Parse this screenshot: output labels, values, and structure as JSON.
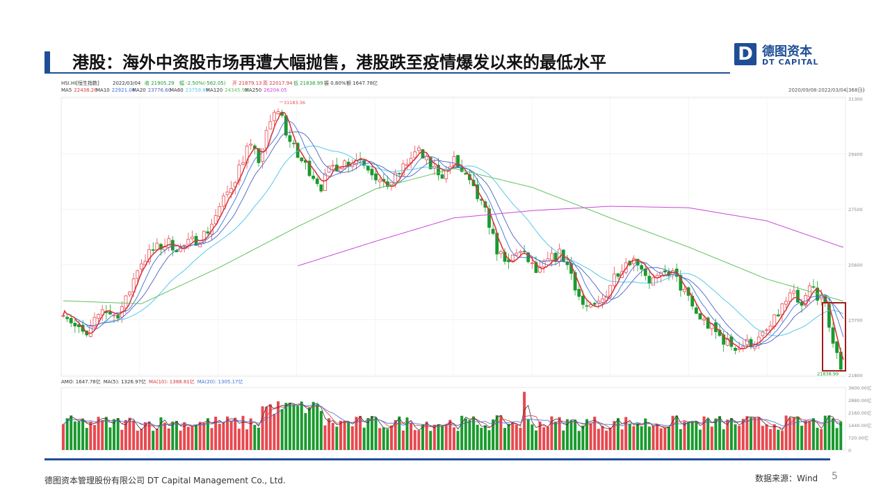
{
  "slide": {
    "title": "港股：海外中资股市场再遭大幅抛售，港股跌至疫情爆发以来的最低水平",
    "logo": {
      "mark": "D",
      "cn": "德图资本",
      "en": "DT CAPITAL"
    },
    "footer_left": "德图资本管理股份有限公司  DT Capital Management  Co., Ltd.",
    "source": "数据来源：Wind",
    "page_number": "5"
  },
  "colors": {
    "brand": "#1f4e96",
    "up": "#e8484f",
    "down": "#1a9a2e",
    "highlight": "#a31a1a"
  },
  "chart_data": {
    "type": "candlestick",
    "header": {
      "symbol": "HSI.HI[恒生指数]",
      "date": "2022/03/04",
      "close_text": "收 21905.29",
      "change_text": "幅 -2.50%(-562.05)",
      "open_text": "开 21879.13",
      "high_text": "高 22017.94",
      "low_text": "低 21838.99",
      "amplitude_text": "振 0.80%",
      "turnover_text": "额 1647.78亿"
    },
    "date_range": "2020/09/08-2022/03/04[368日]",
    "ma_legend": [
      {
        "label": "MA5",
        "value": "22438.26",
        "color": "#d9343c"
      },
      {
        "label": "MA10",
        "value": "22921.04",
        "color": "#3a6fd8"
      },
      {
        "label": "MA20",
        "value": "23776.60",
        "color": "#4a5fc1"
      },
      {
        "label": "MA60",
        "value": "23759.89",
        "color": "#55c8e8"
      },
      {
        "label": "MA120",
        "value": "24345.92",
        "color": "#5cc35c"
      },
      {
        "label": "MA250",
        "value": "26204.05",
        "color": "#cc44dd"
      }
    ],
    "ylim": [
      21800,
      31300
    ],
    "yticks": [
      "31300",
      "29400",
      "27500",
      "25600",
      "23700",
      "21800"
    ],
    "max_label": "31183.36",
    "min_label": "21838.99",
    "anchors": [
      [
        0,
        24050
      ],
      [
        10,
        23400
      ],
      [
        18,
        23100
      ],
      [
        30,
        24100
      ],
      [
        40,
        23800
      ],
      [
        48,
        24350
      ],
      [
        58,
        25600
      ],
      [
        68,
        26050
      ],
      [
        80,
        26350
      ],
      [
        90,
        26150
      ],
      [
        100,
        26400
      ],
      [
        110,
        26700
      ],
      [
        122,
        27700
      ],
      [
        132,
        28600
      ],
      [
        142,
        29700
      ],
      [
        150,
        29200
      ],
      [
        160,
        30600
      ],
      [
        166,
        31000
      ],
      [
        172,
        30000
      ],
      [
        180,
        29300
      ],
      [
        190,
        28800
      ],
      [
        198,
        28300
      ],
      [
        206,
        28950
      ],
      [
        218,
        29150
      ],
      [
        228,
        29250
      ],
      [
        236,
        28900
      ],
      [
        246,
        28250
      ],
      [
        256,
        28600
      ],
      [
        262,
        29000
      ],
      [
        272,
        29500
      ],
      [
        282,
        28950
      ],
      [
        292,
        28700
      ],
      [
        300,
        29150
      ],
      [
        310,
        28500
      ],
      [
        318,
        27900
      ],
      [
        326,
        27200
      ],
      [
        332,
        26200
      ],
      [
        340,
        25500
      ],
      [
        348,
        26100
      ],
      [
        356,
        25800
      ],
      [
        364,
        25250
      ],
      [
        372,
        25700
      ],
      [
        382,
        26000
      ],
      [
        390,
        25300
      ],
      [
        398,
        24250
      ],
      [
        406,
        24000
      ],
      [
        414,
        24400
      ],
      [
        424,
        25300
      ],
      [
        434,
        25800
      ],
      [
        442,
        25700
      ],
      [
        450,
        25050
      ],
      [
        458,
        25100
      ],
      [
        466,
        25400
      ],
      [
        476,
        24700
      ],
      [
        486,
        23900
      ],
      [
        494,
        23550
      ],
      [
        502,
        23200
      ],
      [
        510,
        22900
      ],
      [
        518,
        22750
      ],
      [
        526,
        22900
      ],
      [
        534,
        23000
      ],
      [
        544,
        23500
      ],
      [
        552,
        24150
      ],
      [
        560,
        24600
      ],
      [
        566,
        24000
      ],
      [
        574,
        24900
      ],
      [
        580,
        24500
      ],
      [
        586,
        24000
      ],
      [
        592,
        22700
      ],
      [
        598,
        21950
      ]
    ],
    "ma120_line": [
      [
        0,
        24350
      ],
      [
        60,
        24250
      ],
      [
        120,
        25500
      ],
      [
        180,
        26900
      ],
      [
        240,
        28200
      ],
      [
        300,
        28900
      ],
      [
        360,
        28250
      ],
      [
        420,
        27200
      ],
      [
        480,
        26200
      ],
      [
        540,
        25100
      ],
      [
        598,
        24350
      ]
    ],
    "ma250_line": [
      [
        180,
        25550
      ],
      [
        240,
        26400
      ],
      [
        300,
        27200
      ],
      [
        360,
        27450
      ],
      [
        420,
        27600
      ],
      [
        480,
        27550
      ],
      [
        540,
        27100
      ],
      [
        598,
        26200
      ]
    ],
    "volume": {
      "legend": [
        {
          "label": "AMO: 1647.78亿",
          "color": "#333333"
        },
        {
          "label": "MA(5): 1326.97亿",
          "color": "#333333"
        },
        {
          "label": "MA(10): 1388.81亿",
          "color": "#d9343c"
        },
        {
          "label": "MA(20): 1305.17亿",
          "color": "#3a6fd8"
        }
      ],
      "ylim": [
        0,
        3600
      ],
      "yticks": [
        "3600.00亿",
        "2880.00亿",
        "2160.00亿",
        "1440.00亿",
        "720.00亿",
        "0"
      ]
    },
    "highlight_box": "last trading days (2022/02 - 2022/03/04)"
  }
}
